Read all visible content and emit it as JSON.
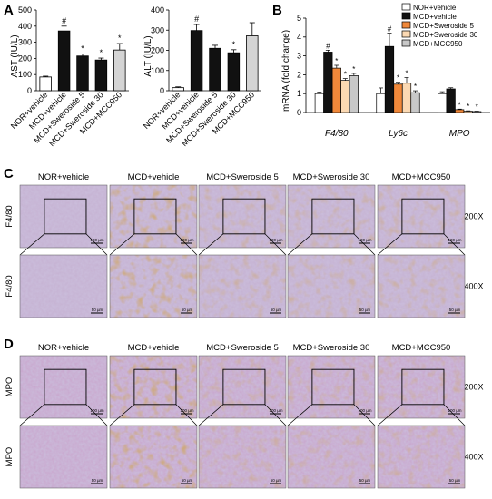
{
  "panels": {
    "A": {
      "letter": "A",
      "charts": [
        {
          "type": "bar",
          "ylabel": "AST (IU/L)",
          "ylim": [
            0,
            500
          ],
          "yticks": [
            0,
            100,
            200,
            300,
            400,
            500
          ],
          "categories": [
            "NOR+vehicle",
            "MCD+vehicle",
            "MCD+Sweroside 5",
            "MCD+Sweroside 30",
            "MCD+MCC950"
          ],
          "values": [
            85,
            370,
            215,
            190,
            252
          ],
          "errors": [
            5,
            30,
            12,
            12,
            40
          ],
          "marks": [
            "",
            "#",
            "*",
            "*",
            "*"
          ]
        },
        {
          "type": "bar",
          "ylabel": "ALT (IU/L)",
          "ylim": [
            0,
            400
          ],
          "yticks": [
            0,
            100,
            200,
            300,
            400
          ],
          "categories": [
            "NOR+vehicle",
            "MCD+vehicle",
            "MCD+Sweroside 5",
            "MCD+Sweroside 30",
            "MCD+MCC950"
          ],
          "values": [
            15,
            298,
            210,
            188,
            272
          ],
          "errors": [
            4,
            30,
            15,
            15,
            65
          ],
          "marks": [
            "",
            "#",
            "",
            "*",
            ""
          ]
        }
      ]
    },
    "B": {
      "letter": "B",
      "chart": {
        "type": "bar",
        "ylabel": "mRNA (fold change)",
        "ylim": [
          0,
          5
        ],
        "yticks": [
          0,
          1,
          2,
          3,
          4,
          5
        ],
        "categories": [
          "F4/80",
          "Ly6c",
          "MPO"
        ],
        "series": [
          {
            "name": "NOR+vehicle",
            "values": [
              1.0,
              1.0,
              1.0
            ],
            "errors": [
              0.08,
              0.3,
              0.1
            ],
            "color": "#ffffff"
          },
          {
            "name": "MCD+vehicle",
            "values": [
              3.2,
              3.5,
              1.25
            ],
            "errors": [
              0.1,
              0.7,
              0.06
            ],
            "color": "#111111"
          },
          {
            "name": "MCD+Sweroside 5",
            "values": [
              2.35,
              1.5,
              0.15
            ],
            "errors": [
              0.15,
              0.1,
              0.03
            ],
            "color": "#f0883a"
          },
          {
            "name": "MCD+Sweroside 30",
            "values": [
              1.7,
              1.55,
              0.07
            ],
            "errors": [
              0.1,
              0.3,
              0.02
            ],
            "color": "#fbd9b3"
          },
          {
            "name": "MCD+MCC950",
            "values": [
              1.95,
              1.05,
              0.05
            ],
            "errors": [
              0.12,
              0.1,
              0.02
            ],
            "color": "#c8c8c8"
          }
        ],
        "marks": [
          [
            "",
            "#",
            "*",
            "*",
            "*"
          ],
          [
            "",
            "#",
            "*",
            "*",
            "*"
          ],
          [
            "",
            "",
            "*",
            "*",
            "*"
          ]
        ]
      }
    },
    "C": {
      "letter": "C",
      "columns": [
        "NOR+vehicle",
        "MCD+vehicle",
        "MCD+Sweroside 5",
        "MCD+Sweroside 30",
        "MCD+MCC950"
      ],
      "rows": [
        {
          "label": "F4/80",
          "mag": "200X",
          "scale": "100 µm"
        },
        {
          "label": "F4/80",
          "mag": "400X",
          "scale": "50 µm"
        }
      ]
    },
    "D": {
      "letter": "D",
      "columns": [
        "NOR+vehicle",
        "MCD+vehicle",
        "MCD+Sweroside 5",
        "MCD+Sweroside 30",
        "MCD+MCC950"
      ],
      "rows": [
        {
          "label": "MPO",
          "mag": "200X",
          "scale": "100 µm"
        },
        {
          "label": "MPO",
          "mag": "400X",
          "scale": "50 µm"
        }
      ]
    }
  }
}
